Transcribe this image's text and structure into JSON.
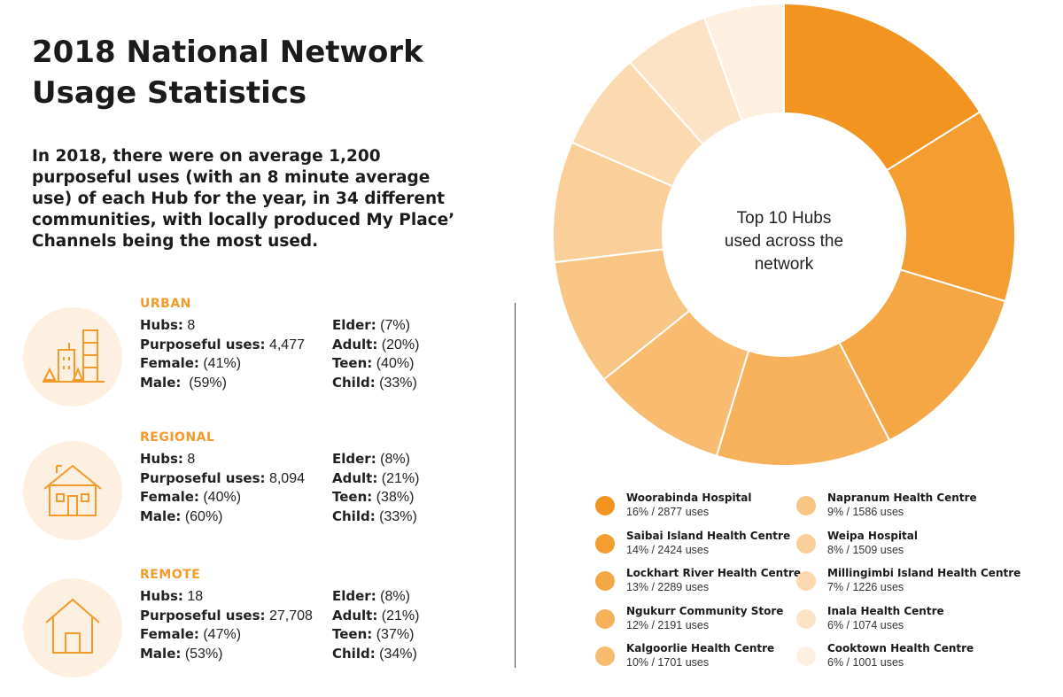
{
  "title": "2018 National Network Usage Statistics",
  "intro": "In 2018, there were on average 1,200 purposeful uses (with an 8 minute average use) of each Hub for the year, in 34 different communities, with locally produced My Place’ Channels being the most used.",
  "categories": [
    {
      "name": "URBAN",
      "icon": "city-buildings-icon",
      "left": [
        {
          "label": "Hubs:",
          "value": " 8"
        },
        {
          "label": "Purposeful uses:",
          "value": " 4,477"
        },
        {
          "label": "Female:",
          "value": " (41%)"
        },
        {
          "label": "Male:",
          "value": "  (59%)"
        }
      ],
      "right": [
        {
          "label": "Elder:",
          "value": " (7%)"
        },
        {
          "label": "Adult:",
          "value": " (20%)"
        },
        {
          "label": "Teen:",
          "value": " (40%)"
        },
        {
          "label": "Child:",
          "value": " (33%)"
        }
      ]
    },
    {
      "name": "REGIONAL",
      "icon": "house-with-chimney-icon",
      "left": [
        {
          "label": "Hubs:",
          "value": " 8"
        },
        {
          "label": "Purposeful uses:",
          "value": " 8,094"
        },
        {
          "label": "Female:",
          "value": " (40%)"
        },
        {
          "label": "Male:",
          "value": " (60%)"
        }
      ],
      "right": [
        {
          "label": "Elder:",
          "value": " (8%)"
        },
        {
          "label": "Adult:",
          "value": " (21%)"
        },
        {
          "label": "Teen:",
          "value": " (38%)"
        },
        {
          "label": "Child:",
          "value": " (33%)"
        }
      ]
    },
    {
      "name": "REMOTE",
      "icon": "hut-icon",
      "left": [
        {
          "label": "Hubs:",
          "value": " 18"
        },
        {
          "label": "Purposeful uses:",
          "value": " 27,708"
        },
        {
          "label": "Female:",
          "value": " (47%)"
        },
        {
          "label": "Male:",
          "value": " (53%)"
        }
      ],
      "right": [
        {
          "label": "Elder:",
          "value": " (8%)"
        },
        {
          "label": "Adult:",
          "value": " (21%)"
        },
        {
          "label": "Teen:",
          "value": " (37%)"
        },
        {
          "label": "Child:",
          "value": " (34%)"
        }
      ]
    }
  ],
  "chart_data": {
    "type": "pie",
    "center_label": "Top 10 Hubs used across the network",
    "legend_position": "bottom",
    "slices": [
      {
        "name": "Woorabinda Hospital",
        "value": 2877,
        "caption": "16% / 2877 uses",
        "color": "#f39421"
      },
      {
        "name": "Saibai Island Health Centre",
        "value": 2424,
        "caption": "14% / 2424 uses",
        "color": "#f49d31"
      },
      {
        "name": "Lockhart River Health Centre",
        "value": 2289,
        "caption": "13% / 2289 uses",
        "color": "#f5a745"
      },
      {
        "name": "Ngukurr Community Store",
        "value": 2191,
        "caption": "12% / 2191 uses",
        "color": "#f7b15a"
      },
      {
        "name": "Kalgoorlie Health Centre",
        "value": 1701,
        "caption": "10% / 1701 uses",
        "color": "#f8bb6f"
      },
      {
        "name": "Napranum Health Centre",
        "value": 1586,
        "caption": "9% / 1586 uses",
        "color": "#f9c584"
      },
      {
        "name": "Weipa Hospital",
        "value": 1509,
        "caption": "8% / 1509 uses",
        "color": "#fbcf99"
      },
      {
        "name": "Millingimbi Island Health Centre",
        "value": 1226,
        "caption": "7% / 1226 uses",
        "color": "#fcd9ae"
      },
      {
        "name": "Inala Health Centre",
        "value": 1074,
        "caption": "6% / 1074 uses",
        "color": "#fde3c6"
      },
      {
        "name": "Cooktown Health Centre",
        "value": 1001,
        "caption": "6% / 1001 uses",
        "color": "#fef0e0"
      }
    ]
  }
}
